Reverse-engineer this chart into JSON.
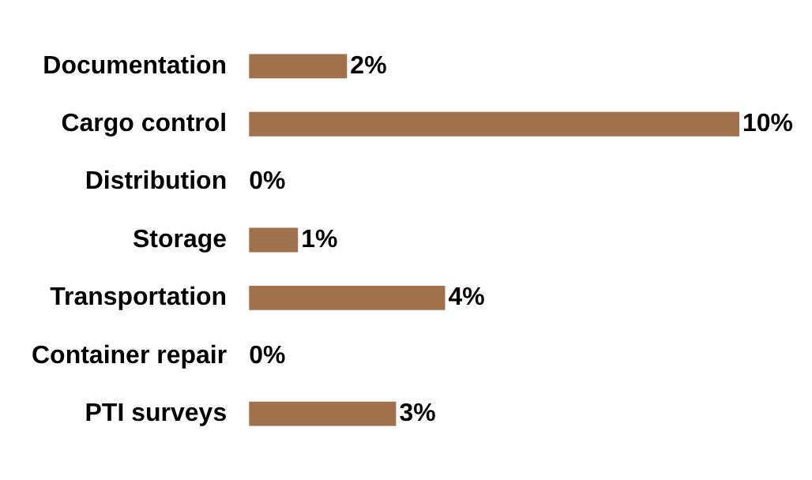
{
  "chart_data": {
    "type": "bar",
    "orientation": "horizontal",
    "categories": [
      "Documentation",
      "Cargo control",
      "Distribution",
      "Storage",
      "Transportation",
      "Container repair",
      "PTI surveys"
    ],
    "values": [
      2,
      10,
      0,
      1,
      4,
      0,
      3
    ],
    "value_labels": [
      "2%",
      "10%",
      "0%",
      "1%",
      "4%",
      "0%",
      "3%"
    ],
    "color": "#a0714a"
  }
}
